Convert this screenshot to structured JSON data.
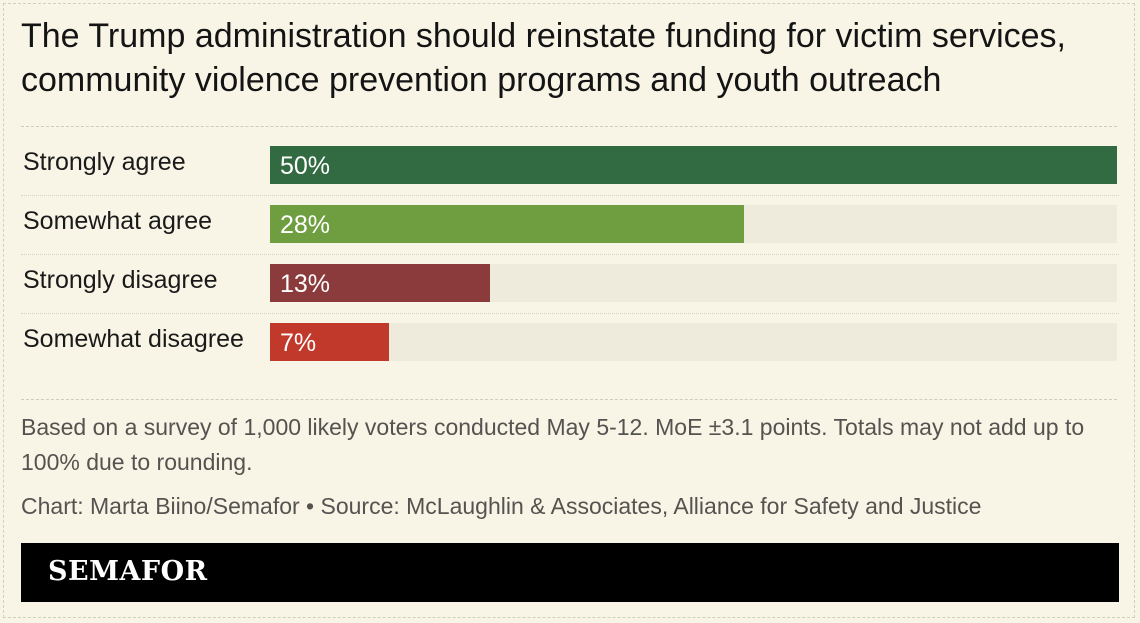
{
  "chart_data": {
    "type": "bar",
    "orientation": "horizontal",
    "title": "The Trump administration should reinstate funding for victim services, community violence prevention programs and youth outreach",
    "categories": [
      "Strongly agree",
      "Somewhat agree",
      "Strongly disagree",
      "Somewhat disagree"
    ],
    "values": [
      50,
      28,
      13,
      7
    ],
    "value_labels": [
      "50%",
      "28%",
      "13%",
      "7%"
    ],
    "colors": [
      "#326b41",
      "#6f9e40",
      "#8b3b3b",
      "#c0392b"
    ],
    "xlim": [
      0,
      50
    ],
    "grid": false,
    "legend": "none"
  },
  "notes": {
    "method": "Based on a survey of 1,000 likely voters conducted May 5-12. MoE ±3.1 points. Totals may not add up to 100% due to rounding.",
    "credit": "Chart: Marta Biino/Semafor • Source: McLaughlin & Associates, Alliance for Safety and Justice"
  },
  "brand": {
    "logo": "SEMAFOR",
    "background": "#f8f5e6",
    "logo_bar_color": "#000000"
  }
}
